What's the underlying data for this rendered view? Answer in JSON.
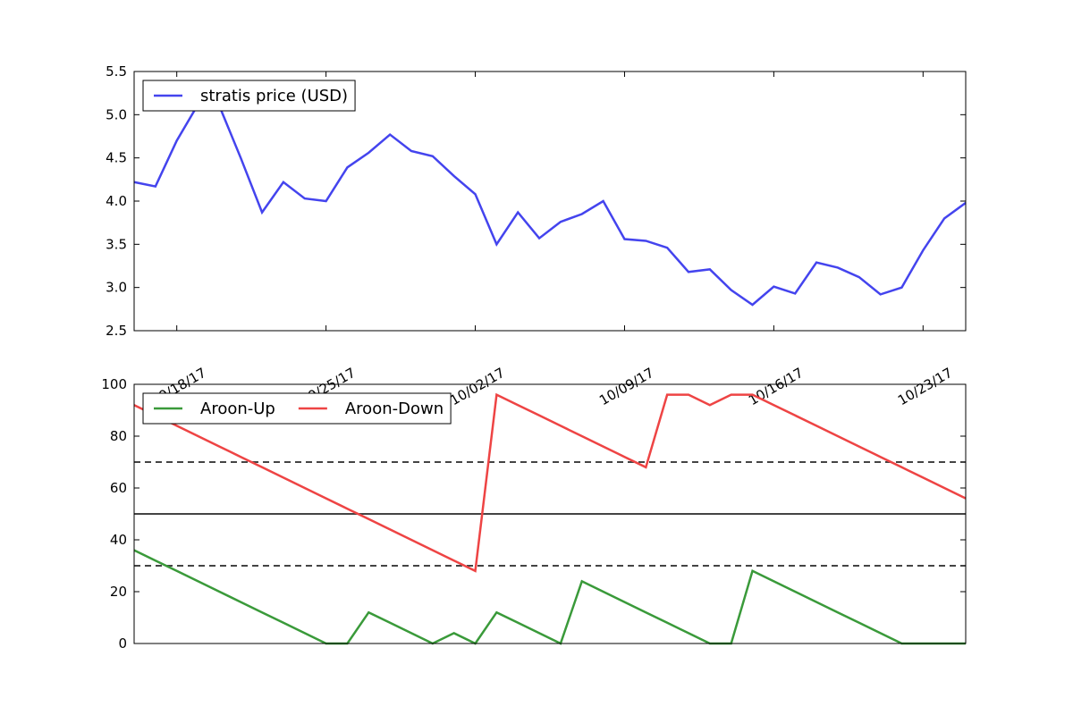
{
  "chart_data": [
    {
      "type": "line",
      "legend": {
        "placement": "top-left"
      },
      "x": [
        "2017-09-16",
        "2017-09-17",
        "2017-09-18",
        "2017-09-19",
        "2017-09-20",
        "2017-09-21",
        "2017-09-22",
        "2017-09-23",
        "2017-09-24",
        "2017-09-25",
        "2017-09-26",
        "2017-09-27",
        "2017-09-28",
        "2017-09-29",
        "2017-09-30",
        "2017-10-01",
        "2017-10-02",
        "2017-10-03",
        "2017-10-04",
        "2017-10-05",
        "2017-10-06",
        "2017-10-07",
        "2017-10-08",
        "2017-10-09",
        "2017-10-10",
        "2017-10-11",
        "2017-10-12",
        "2017-10-13",
        "2017-10-14",
        "2017-10-15",
        "2017-10-16",
        "2017-10-17",
        "2017-10-18",
        "2017-10-19",
        "2017-10-20",
        "2017-10-21",
        "2017-10-22",
        "2017-10-23",
        "2017-10-24",
        "2017-10-25"
      ],
      "series": [
        {
          "name": "stratis price (USD)",
          "color": "#4444ee",
          "values": [
            4.22,
            4.17,
            4.7,
            5.12,
            5.1,
            4.5,
            3.87,
            4.22,
            4.03,
            4.0,
            4.39,
            4.56,
            4.77,
            4.58,
            4.52,
            4.29,
            4.08,
            3.5,
            3.87,
            3.57,
            3.76,
            3.85,
            4.0,
            3.56,
            3.54,
            3.46,
            3.18,
            3.21,
            2.97,
            2.8,
            3.01,
            2.93,
            3.29,
            3.23,
            3.12,
            2.92,
            3.0,
            3.43,
            3.8,
            3.98
          ]
        }
      ],
      "ylim": [
        2.5,
        5.5
      ],
      "yticks": [
        "2.5",
        "3.0",
        "3.5",
        "4.0",
        "4.5",
        "5.0",
        "5.5"
      ],
      "xticks": [
        "09/18/17",
        "09/25/17",
        "10/02/17",
        "10/09/17",
        "10/16/17",
        "10/23/17"
      ],
      "xticks_dates": [
        "2017-09-18",
        "2017-09-25",
        "2017-10-02",
        "2017-10-09",
        "2017-10-16",
        "2017-10-23"
      ],
      "grid": false
    },
    {
      "type": "line",
      "legend": {
        "placement": "top-left"
      },
      "x": [
        "2017-09-16",
        "2017-09-17",
        "2017-09-18",
        "2017-09-19",
        "2017-09-20",
        "2017-09-21",
        "2017-09-22",
        "2017-09-23",
        "2017-09-24",
        "2017-09-25",
        "2017-09-26",
        "2017-09-27",
        "2017-09-28",
        "2017-09-29",
        "2017-09-30",
        "2017-10-01",
        "2017-10-02",
        "2017-10-03",
        "2017-10-04",
        "2017-10-05",
        "2017-10-06",
        "2017-10-07",
        "2017-10-08",
        "2017-10-09",
        "2017-10-10",
        "2017-10-11",
        "2017-10-12",
        "2017-10-13",
        "2017-10-14",
        "2017-10-15",
        "2017-10-16",
        "2017-10-17",
        "2017-10-18",
        "2017-10-19",
        "2017-10-20",
        "2017-10-21",
        "2017-10-22",
        "2017-10-23",
        "2017-10-24",
        "2017-10-25"
      ],
      "series": [
        {
          "name": "Aroon-Up",
          "color": "#3a9a3a",
          "values": [
            36,
            32,
            28,
            24,
            20,
            16,
            12,
            8,
            4,
            0,
            0,
            12,
            8,
            4,
            0,
            4,
            0,
            12,
            8,
            4,
            0,
            24,
            20,
            16,
            12,
            8,
            4,
            0,
            0,
            28,
            24,
            20,
            16,
            12,
            8,
            4,
            0,
            0,
            0,
            0
          ]
        },
        {
          "name": "Aroon-Down",
          "color": "#ee4444",
          "values": [
            92,
            88,
            84,
            80,
            76,
            72,
            68,
            64,
            60,
            56,
            52,
            48,
            44,
            40,
            36,
            32,
            28,
            96,
            92,
            88,
            84,
            80,
            76,
            72,
            68,
            96,
            96,
            92,
            96,
            96,
            92,
            88,
            84,
            80,
            76,
            72,
            68,
            64,
            60,
            56
          ]
        }
      ],
      "ylim": [
        0,
        100
      ],
      "yticks": [
        "0",
        "20",
        "40",
        "60",
        "80",
        "100"
      ],
      "reference_lines": [
        {
          "value": 70,
          "style": "dashed",
          "color": "#444444"
        },
        {
          "value": 50,
          "style": "solid",
          "color": "#444444"
        },
        {
          "value": 30,
          "style": "dashed",
          "color": "#444444"
        }
      ],
      "grid": false
    }
  ]
}
